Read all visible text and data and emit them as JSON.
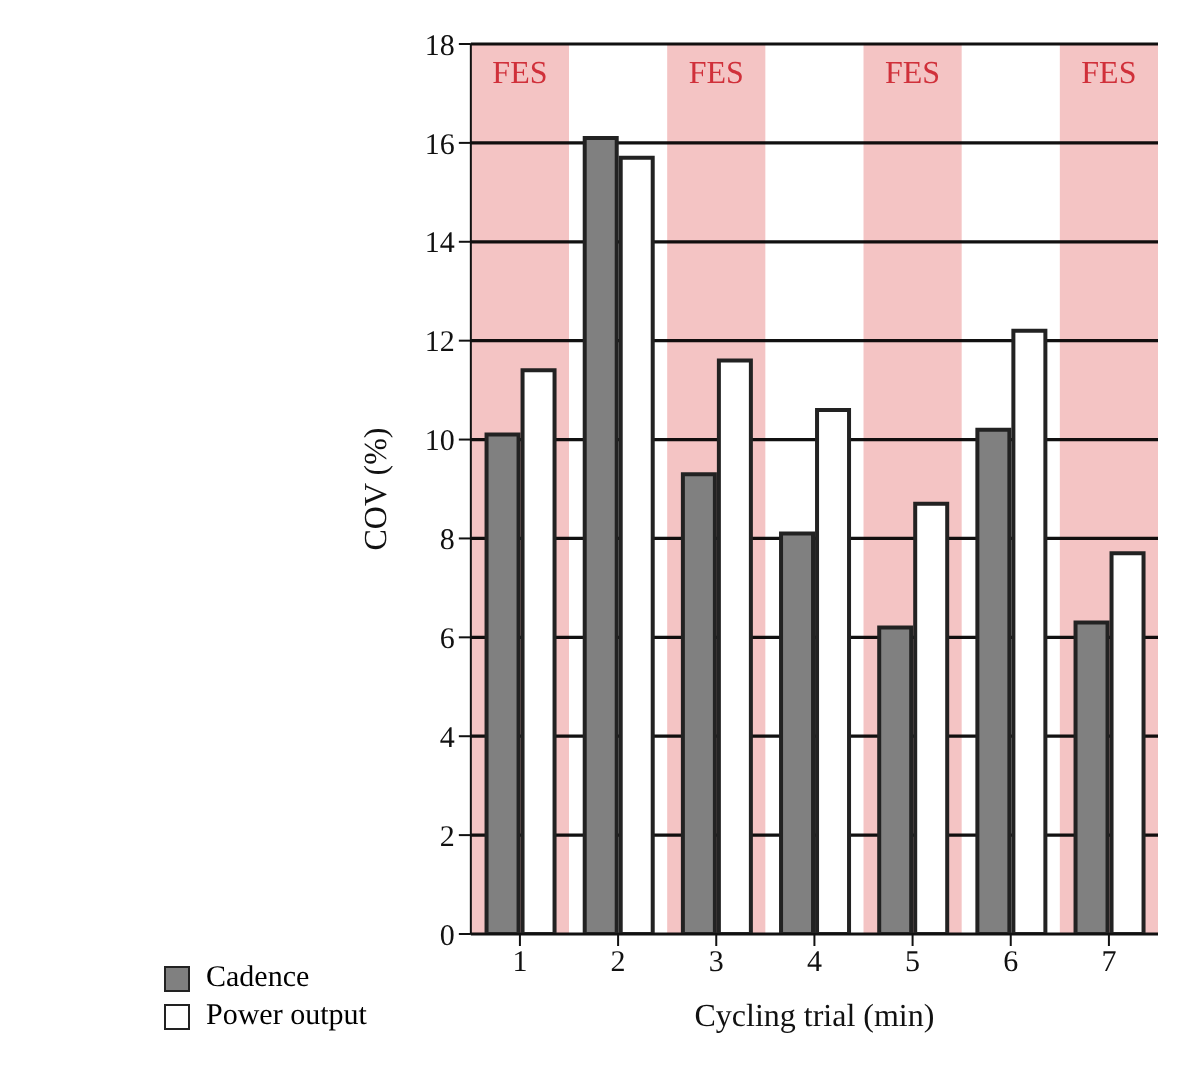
{
  "chart_data": {
    "type": "bar",
    "xlabel": "Cycling trial (min)",
    "ylabel": "COV (%)",
    "categories": [
      "1",
      "2",
      "3",
      "4",
      "5",
      "6",
      "7"
    ],
    "series": [
      {
        "name": "Cadence",
        "color": "#808080",
        "values": [
          10.1,
          16.1,
          9.3,
          8.1,
          6.2,
          10.2,
          6.3
        ]
      },
      {
        "name": "Power output",
        "color": "#ffffff",
        "values": [
          11.4,
          15.7,
          11.6,
          10.6,
          8.7,
          12.2,
          7.7
        ]
      }
    ],
    "ylim": [
      0,
      18
    ],
    "yticks": [
      0,
      2,
      4,
      6,
      8,
      10,
      12,
      14,
      16,
      18
    ],
    "grid": "y",
    "legend": "bottom left",
    "bands": [
      {
        "axis": "x",
        "from": "1",
        "to": "1",
        "label": "FES",
        "color": "#f4c4c4"
      },
      {
        "axis": "x",
        "from": "3",
        "to": "3",
        "label": "FES",
        "color": "#f4c4c4"
      },
      {
        "axis": "x",
        "from": "5",
        "to": "5",
        "label": "FES",
        "color": "#f4c4c4"
      },
      {
        "axis": "x",
        "from": "7",
        "to": "7",
        "label": "FES",
        "color": "#f4c4c4"
      }
    ]
  }
}
